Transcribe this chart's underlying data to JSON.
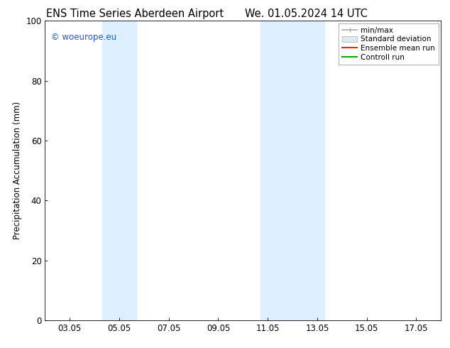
{
  "title_left": "ENS Time Series Aberdeen Airport",
  "title_right": "We. 01.05.2024 14 UTC",
  "ylabel": "Precipitation Accumulation (mm)",
  "ylim": [
    0,
    100
  ],
  "yticks": [
    0,
    20,
    40,
    60,
    80,
    100
  ],
  "xtick_labels": [
    "03.05",
    "05.05",
    "07.05",
    "09.05",
    "11.05",
    "13.05",
    "15.05",
    "17.05"
  ],
  "xtick_positions": [
    3,
    5,
    7,
    9,
    11,
    13,
    15,
    17
  ],
  "xlim": [
    2.0,
    18.0
  ],
  "shaded_bands": [
    {
      "x_start": 4.3,
      "x_end": 5.7,
      "color": "#ddeeff"
    },
    {
      "x_start": 10.7,
      "x_end": 13.3,
      "color": "#ddeeff"
    }
  ],
  "watermark_text": "© woeurope.eu",
  "watermark_color": "#1a5fd8",
  "legend_labels": [
    "min/max",
    "Standard deviation",
    "Ensemble mean run",
    "Controll run"
  ],
  "legend_line_colors": [
    "#aaaaaa",
    "#cccccc",
    "#ff2200",
    "#00aa00"
  ],
  "background_color": "#ffffff",
  "title_fontsize": 10.5,
  "label_fontsize": 8.5,
  "tick_fontsize": 8.5,
  "legend_fontsize": 7.5
}
